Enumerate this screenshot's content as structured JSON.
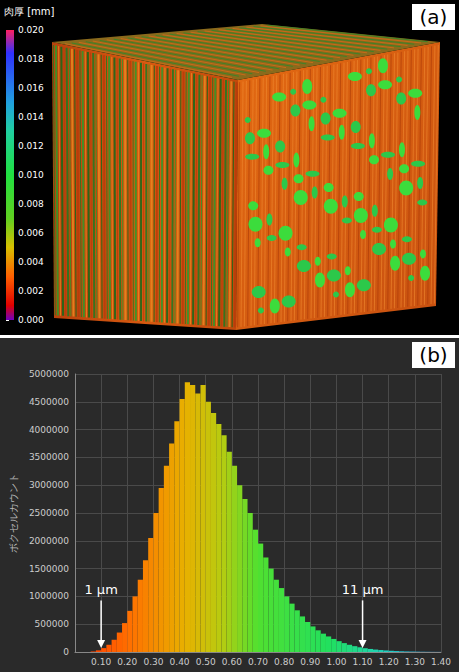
{
  "chart_data": [
    {
      "type": "image",
      "panel": "(a)",
      "colorbar": {
        "title": "肉厚 [mm]",
        "range": [
          0,
          0.02
        ],
        "ticks": [
          {
            "value": 0,
            "label": "0.000"
          },
          {
            "value": 0.002,
            "label": "0.002"
          },
          {
            "value": 0.004,
            "label": "0.004"
          },
          {
            "value": 0.006,
            "label": "0.006"
          },
          {
            "value": 0.008,
            "label": "0.008"
          },
          {
            "value": 0.01,
            "label": "0.010"
          },
          {
            "value": 0.012,
            "label": "0.012"
          },
          {
            "value": 0.014,
            "label": "0.014"
          },
          {
            "value": 0.016,
            "label": "0.016"
          },
          {
            "value": 0.018,
            "label": "0.018"
          },
          {
            "value": 0.02,
            "label": "0.020"
          }
        ]
      }
    },
    {
      "type": "histogram",
      "panel": "(b)",
      "y_label": "ボクセルカウント",
      "bins": [
        0,
        0.02,
        0.04,
        0.06,
        0.08,
        0.1,
        0.12,
        0.14,
        0.16,
        0.18,
        0.2,
        0.22,
        0.24,
        0.26,
        0.28,
        0.3,
        0.32,
        0.34,
        0.36,
        0.38,
        0.4,
        0.42,
        0.44,
        0.46,
        0.48,
        0.5,
        0.52,
        0.54,
        0.56,
        0.58,
        0.6,
        0.62,
        0.64,
        0.66,
        0.68,
        0.7,
        0.72,
        0.74,
        0.76,
        0.78,
        0.8,
        0.82,
        0.84,
        0.86,
        0.88,
        0.9,
        0.92,
        0.94,
        0.96,
        0.98,
        1.0,
        1.02,
        1.04,
        1.06,
        1.08,
        1.1,
        1.12,
        1.14,
        1.16,
        1.18,
        1.2,
        1.22,
        1.24,
        1.26,
        1.28,
        1.3,
        1.32,
        1.34,
        1.36,
        1.38,
        1.4
      ],
      "counts": [
        0,
        0,
        0,
        10000,
        30000,
        70000,
        130000,
        220000,
        350000,
        520000,
        740000,
        1000000,
        1300000,
        1650000,
        2050000,
        2500000,
        2950000,
        3350000,
        3750000,
        4150000,
        4550000,
        4850000,
        4800000,
        4650000,
        4800000,
        4500000,
        4300000,
        4100000,
        3900000,
        3600000,
        3350000,
        3000000,
        2750000,
        2500000,
        2200000,
        1950000,
        1700000,
        1500000,
        1300000,
        1150000,
        1000000,
        870000,
        750000,
        640000,
        540000,
        460000,
        390000,
        330000,
        280000,
        235000,
        195000,
        160000,
        130000,
        105000,
        85000,
        68000,
        55000,
        44000,
        35000,
        28000,
        22000,
        17000,
        13000,
        10000,
        8000,
        6000,
        4500,
        3500,
        2500,
        2000
      ],
      "xlim": [
        0,
        1.4
      ],
      "xticks": [
        {
          "value": 0.1,
          "label": "0.10"
        },
        {
          "value": 0.2,
          "label": "0.20"
        },
        {
          "value": 0.3,
          "label": "0.30"
        },
        {
          "value": 0.4,
          "label": "0.40"
        },
        {
          "value": 0.5,
          "label": "0.50"
        },
        {
          "value": 0.6,
          "label": "0.60"
        },
        {
          "value": 0.7,
          "label": "0.70"
        },
        {
          "value": 0.8,
          "label": "0.80"
        },
        {
          "value": 0.9,
          "label": "0.90"
        },
        {
          "value": 1.0,
          "label": "1.00"
        },
        {
          "value": 1.1,
          "label": "1.10"
        },
        {
          "value": 1.2,
          "label": "1.20"
        },
        {
          "value": 1.3,
          "label": "1.30"
        },
        {
          "value": 1.4,
          "label": "1.40"
        }
      ],
      "ylim": [
        0,
        5000000
      ],
      "yticks": [
        0,
        500000,
        1000000,
        1500000,
        2000000,
        2500000,
        3000000,
        3500000,
        4000000,
        4500000,
        5000000
      ],
      "grid": true,
      "annotations": [
        {
          "text": "1 µm",
          "x": 0.1,
          "y": 1000000
        },
        {
          "text": "11 µm",
          "x": 1.1,
          "y": 1000000
        }
      ]
    }
  ]
}
